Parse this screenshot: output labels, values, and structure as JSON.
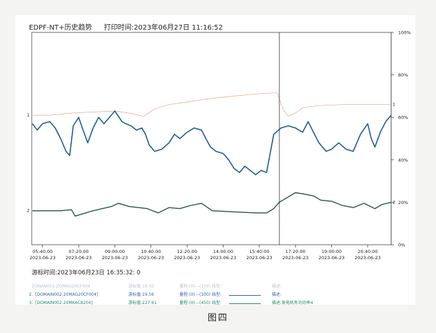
{
  "header": {
    "title": "EDPF-NT+历史趋势",
    "print_time": "打印时间:2023年06月27日 11:16:52"
  },
  "cursor_time": "游标时间:2023年06月23日 16:35:32: 0",
  "caption": "图四",
  "legend": {
    "row1": {
      "faded_fields": [
        "ZONAN002:ZOMAG20CF004",
        "游标值:19.50",
        "量程:(0)---(100) 线型:",
        "描述:"
      ]
    },
    "row2": {
      "index": "2.",
      "tag": "[DOMAIN002:20MAG20CF004]",
      "cursor_value": "游标值:19.56",
      "range_type": "量程:(0)---(100) 线型:",
      "description": "描述:"
    },
    "row3": {
      "index": "3.",
      "tag": "[DOMAIN002:20MKAC8204]",
      "cursor_value": "游标值:227.61",
      "range_type": "量程:(0)---(450) 线型:",
      "description": "描述:发电机有功功率4"
    }
  },
  "chart_data": {
    "type": "line",
    "x_tick_labels": [
      [
        "05:40:00",
        "2023-06-23"
      ],
      [
        "07:20:00",
        "2023-06-23"
      ],
      [
        "09:00:00",
        "2023-06-23"
      ],
      [
        "10:40:00",
        "2023-06-23"
      ],
      [
        "12:20:00",
        "2023-06-23"
      ],
      [
        "14:00:00",
        "2023-06-23"
      ],
      [
        "15:40:00",
        "2023-06-23"
      ],
      [
        "17:20:00",
        "2023-06-23"
      ],
      [
        "19:00:00",
        "2023-06-23"
      ],
      [
        "20:40:00",
        "2023-06-23"
      ]
    ],
    "x_range": [
      "2023-06-23 05:10:00",
      "2023-06-23 21:45:00"
    ],
    "y_right_ticks": [
      "100%",
      "80%",
      "60%",
      "40%",
      "20%",
      "0%"
    ],
    "ylim": [
      0,
      100
    ],
    "cursor": "2023-06-23 16:35:32",
    "series": [
      {
        "marker": "1",
        "color": "#e3a58f",
        "points": [
          [
            "05:12",
            61
          ],
          [
            "06:00",
            61
          ],
          [
            "07:00",
            62
          ],
          [
            "08:00",
            62.5
          ],
          [
            "09:00",
            63
          ],
          [
            "09:40",
            62
          ],
          [
            "10:20",
            60.5
          ],
          [
            "10:50",
            64
          ],
          [
            "11:30",
            66
          ],
          [
            "12:30",
            67.5
          ],
          [
            "13:30",
            69
          ],
          [
            "14:30",
            70
          ],
          [
            "15:30",
            71
          ],
          [
            "16:15",
            71.5
          ],
          [
            "16:30",
            71.5
          ],
          [
            "16:45",
            64
          ],
          [
            "17:00",
            60.5
          ],
          [
            "17:20",
            62
          ],
          [
            "17:40",
            64.5
          ],
          [
            "18:20",
            65.5
          ],
          [
            "19:30",
            66
          ],
          [
            "21:45",
            66
          ]
        ]
      },
      {
        "marker": "1",
        "color": "#1e5c95",
        "points": [
          [
            "05:12",
            57
          ],
          [
            "05:25",
            54
          ],
          [
            "05:40",
            57
          ],
          [
            "06:00",
            58
          ],
          [
            "06:15",
            55
          ],
          [
            "06:30",
            50
          ],
          [
            "06:45",
            44
          ],
          [
            "06:55",
            42
          ],
          [
            "07:05",
            56
          ],
          [
            "07:20",
            60
          ],
          [
            "07:30",
            55
          ],
          [
            "07:45",
            48
          ],
          [
            "08:00",
            55
          ],
          [
            "08:15",
            60
          ],
          [
            "08:30",
            57
          ],
          [
            "08:45",
            60
          ],
          [
            "09:00",
            63
          ],
          [
            "09:20",
            58
          ],
          [
            "09:30",
            57
          ],
          [
            "09:45",
            56
          ],
          [
            "10:00",
            54
          ],
          [
            "10:15",
            55
          ],
          [
            "10:25",
            52
          ],
          [
            "10:35",
            47
          ],
          [
            "10:50",
            44
          ],
          [
            "11:10",
            45
          ],
          [
            "11:30",
            48
          ],
          [
            "11:45",
            52
          ],
          [
            "12:00",
            50
          ],
          [
            "12:20",
            53
          ],
          [
            "12:40",
            55
          ],
          [
            "13:00",
            54
          ],
          [
            "13:15",
            49
          ],
          [
            "13:25",
            46
          ],
          [
            "13:40",
            44
          ],
          [
            "14:00",
            43
          ],
          [
            "14:15",
            40
          ],
          [
            "14:30",
            36
          ],
          [
            "14:45",
            34
          ],
          [
            "15:00",
            37
          ],
          [
            "15:15",
            35
          ],
          [
            "15:30",
            33
          ],
          [
            "15:45",
            35
          ],
          [
            "16:00",
            34
          ],
          [
            "16:20",
            52
          ],
          [
            "16:40",
            55
          ],
          [
            "17:00",
            56
          ],
          [
            "17:20",
            55
          ],
          [
            "17:40",
            53
          ],
          [
            "17:55",
            58
          ],
          [
            "18:10",
            53
          ],
          [
            "18:25",
            48
          ],
          [
            "18:45",
            44
          ],
          [
            "19:00",
            45
          ],
          [
            "19:20",
            48
          ],
          [
            "19:40",
            45
          ],
          [
            "20:00",
            44
          ],
          [
            "20:20",
            52
          ],
          [
            "20:40",
            57
          ],
          [
            "20:50",
            50
          ],
          [
            "21:00",
            46
          ],
          [
            "21:15",
            53
          ],
          [
            "21:30",
            58
          ],
          [
            "21:40",
            60
          ],
          [
            "21:45",
            61
          ]
        ]
      },
      {
        "marker": "2",
        "color": "#1f5a3e",
        "points": [
          [
            "05:12",
            16
          ],
          [
            "06:30",
            16
          ],
          [
            "07:00",
            16.5
          ],
          [
            "07:10",
            13.5
          ],
          [
            "07:40",
            15
          ],
          [
            "08:00",
            16
          ],
          [
            "08:50",
            18
          ],
          [
            "09:10",
            19.5
          ],
          [
            "09:40",
            18
          ],
          [
            "10:30",
            17
          ],
          [
            "11:00",
            15
          ],
          [
            "11:30",
            17.5
          ],
          [
            "12:00",
            17
          ],
          [
            "12:30",
            18.5
          ],
          [
            "13:00",
            19.5
          ],
          [
            "13:30",
            16
          ],
          [
            "14:30",
            15.5
          ],
          [
            "15:30",
            15
          ],
          [
            "16:00",
            15
          ],
          [
            "16:20",
            17
          ],
          [
            "16:35",
            20
          ],
          [
            "16:50",
            21.5
          ],
          [
            "17:20",
            24.5
          ],
          [
            "17:40",
            24
          ],
          [
            "18:10",
            23
          ],
          [
            "18:30",
            21
          ],
          [
            "19:00",
            20.5
          ],
          [
            "19:30",
            18.5
          ],
          [
            "20:00",
            17.5
          ],
          [
            "20:30",
            19.5
          ],
          [
            "21:00",
            17
          ],
          [
            "21:20",
            19
          ],
          [
            "21:45",
            20
          ]
        ]
      }
    ]
  }
}
